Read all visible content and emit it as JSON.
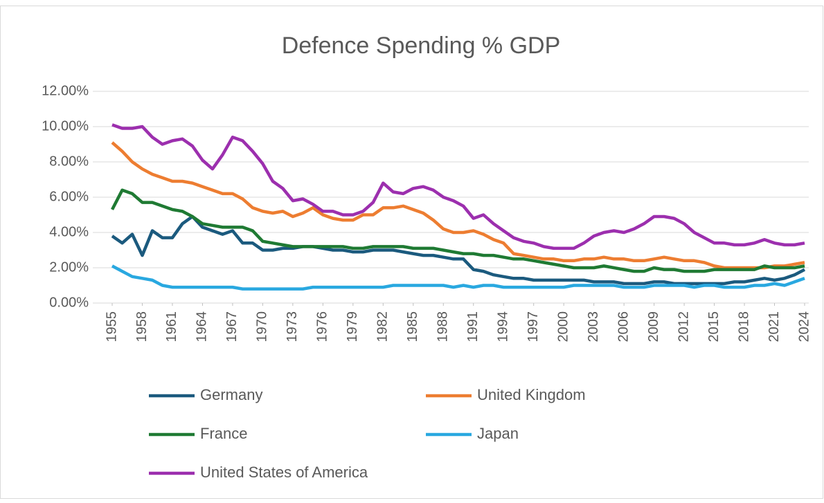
{
  "chart_data": {
    "type": "line",
    "title": "Defence Spending % GDP",
    "x": [
      1955,
      1956,
      1957,
      1958,
      1959,
      1960,
      1961,
      1962,
      1963,
      1964,
      1965,
      1966,
      1967,
      1968,
      1969,
      1970,
      1971,
      1972,
      1973,
      1974,
      1975,
      1976,
      1977,
      1978,
      1979,
      1980,
      1981,
      1982,
      1983,
      1984,
      1985,
      1986,
      1987,
      1988,
      1989,
      1990,
      1991,
      1992,
      1993,
      1994,
      1995,
      1996,
      1997,
      1998,
      1999,
      2000,
      2001,
      2002,
      2003,
      2004,
      2005,
      2006,
      2007,
      2008,
      2009,
      2010,
      2011,
      2012,
      2013,
      2014,
      2015,
      2016,
      2017,
      2018,
      2019,
      2020,
      2021,
      2022,
      2023,
      2024
    ],
    "xlim": [
      1955,
      2024
    ],
    "xticks": [
      1955,
      1958,
      1961,
      1964,
      1967,
      1970,
      1973,
      1976,
      1979,
      1982,
      1985,
      1988,
      1991,
      1994,
      1997,
      2000,
      2003,
      2006,
      2009,
      2012,
      2015,
      2018,
      2021,
      2024
    ],
    "ylim": [
      0,
      12
    ],
    "yticks": [
      {
        "value": 0,
        "label": "0.00%"
      },
      {
        "value": 2,
        "label": "2.00%"
      },
      {
        "value": 4,
        "label": "4.00%"
      },
      {
        "value": 6,
        "label": "6.00%"
      },
      {
        "value": 8,
        "label": "8.00%"
      },
      {
        "value": 10,
        "label": "10.00%"
      },
      {
        "value": 12,
        "label": "12.00%"
      }
    ],
    "grid": true,
    "legend": "bottom",
    "series": [
      {
        "name": "Germany",
        "color": "#1b5a7e",
        "values": [
          3.8,
          3.4,
          3.9,
          2.7,
          4.1,
          3.7,
          3.7,
          4.5,
          4.9,
          4.3,
          4.1,
          3.9,
          4.1,
          3.4,
          3.4,
          3.0,
          3.0,
          3.1,
          3.1,
          3.2,
          3.2,
          3.1,
          3.0,
          3.0,
          2.9,
          2.9,
          3.0,
          3.0,
          3.0,
          2.9,
          2.8,
          2.7,
          2.7,
          2.6,
          2.5,
          2.5,
          1.9,
          1.8,
          1.6,
          1.5,
          1.4,
          1.4,
          1.3,
          1.3,
          1.3,
          1.3,
          1.3,
          1.3,
          1.2,
          1.2,
          1.2,
          1.1,
          1.1,
          1.1,
          1.2,
          1.2,
          1.1,
          1.1,
          1.1,
          1.1,
          1.1,
          1.1,
          1.2,
          1.2,
          1.3,
          1.4,
          1.3,
          1.4,
          1.6,
          1.9
        ]
      },
      {
        "name": "United Kingdom",
        "color": "#ed7d31",
        "values": [
          9.1,
          8.6,
          8.0,
          7.6,
          7.3,
          7.1,
          6.9,
          6.9,
          6.8,
          6.6,
          6.4,
          6.2,
          6.2,
          5.9,
          5.4,
          5.2,
          5.1,
          5.2,
          4.9,
          5.1,
          5.4,
          5.0,
          4.8,
          4.7,
          4.7,
          5.0,
          5.0,
          5.4,
          5.4,
          5.5,
          5.3,
          5.1,
          4.7,
          4.2,
          4.0,
          4.0,
          4.1,
          3.9,
          3.6,
          3.4,
          2.8,
          2.7,
          2.6,
          2.5,
          2.5,
          2.4,
          2.4,
          2.5,
          2.5,
          2.6,
          2.5,
          2.5,
          2.4,
          2.4,
          2.5,
          2.6,
          2.5,
          2.4,
          2.4,
          2.3,
          2.1,
          2.0,
          2.0,
          2.0,
          2.0,
          2.0,
          2.1,
          2.1,
          2.2,
          2.3
        ]
      },
      {
        "name": "France",
        "color": "#1f7a33",
        "values": [
          5.3,
          6.4,
          6.2,
          5.7,
          5.7,
          5.5,
          5.3,
          5.2,
          4.9,
          4.5,
          4.4,
          4.3,
          4.3,
          4.3,
          4.1,
          3.5,
          3.4,
          3.3,
          3.2,
          3.2,
          3.2,
          3.2,
          3.2,
          3.2,
          3.1,
          3.1,
          3.2,
          3.2,
          3.2,
          3.2,
          3.1,
          3.1,
          3.1,
          3.0,
          2.9,
          2.8,
          2.8,
          2.7,
          2.7,
          2.6,
          2.5,
          2.5,
          2.4,
          2.3,
          2.2,
          2.1,
          2.0,
          2.0,
          2.0,
          2.1,
          2.0,
          1.9,
          1.8,
          1.8,
          2.0,
          1.9,
          1.9,
          1.8,
          1.8,
          1.8,
          1.9,
          1.9,
          1.9,
          1.9,
          1.9,
          2.1,
          2.0,
          2.0,
          2.0,
          2.1
        ]
      },
      {
        "name": "Japan",
        "color": "#29a8e0",
        "values": [
          2.1,
          1.8,
          1.5,
          1.4,
          1.3,
          1.0,
          0.9,
          0.9,
          0.9,
          0.9,
          0.9,
          0.9,
          0.9,
          0.8,
          0.8,
          0.8,
          0.8,
          0.8,
          0.8,
          0.8,
          0.9,
          0.9,
          0.9,
          0.9,
          0.9,
          0.9,
          0.9,
          0.9,
          1.0,
          1.0,
          1.0,
          1.0,
          1.0,
          1.0,
          0.9,
          1.0,
          0.9,
          1.0,
          1.0,
          0.9,
          0.9,
          0.9,
          0.9,
          0.9,
          0.9,
          0.9,
          1.0,
          1.0,
          1.0,
          1.0,
          1.0,
          0.9,
          0.9,
          0.9,
          1.0,
          1.0,
          1.0,
          1.0,
          0.9,
          1.0,
          1.0,
          0.9,
          0.9,
          0.9,
          1.0,
          1.0,
          1.1,
          1.0,
          1.2,
          1.4
        ]
      },
      {
        "name": "United States of America",
        "color": "#9c2fae",
        "values": [
          10.1,
          9.9,
          9.9,
          10.0,
          9.4,
          9.0,
          9.2,
          9.3,
          8.9,
          8.1,
          7.6,
          8.4,
          9.4,
          9.2,
          8.6,
          7.9,
          6.9,
          6.5,
          5.8,
          5.9,
          5.6,
          5.2,
          5.2,
          5.0,
          5.0,
          5.2,
          5.7,
          6.8,
          6.3,
          6.2,
          6.5,
          6.6,
          6.4,
          6.0,
          5.8,
          5.5,
          4.8,
          5.0,
          4.5,
          4.1,
          3.7,
          3.5,
          3.4,
          3.2,
          3.1,
          3.1,
          3.1,
          3.4,
          3.8,
          4.0,
          4.1,
          4.0,
          4.2,
          4.5,
          4.9,
          4.9,
          4.8,
          4.5,
          4.0,
          3.7,
          3.4,
          3.4,
          3.3,
          3.3,
          3.4,
          3.6,
          3.4,
          3.3,
          3.3,
          3.4
        ]
      }
    ]
  }
}
